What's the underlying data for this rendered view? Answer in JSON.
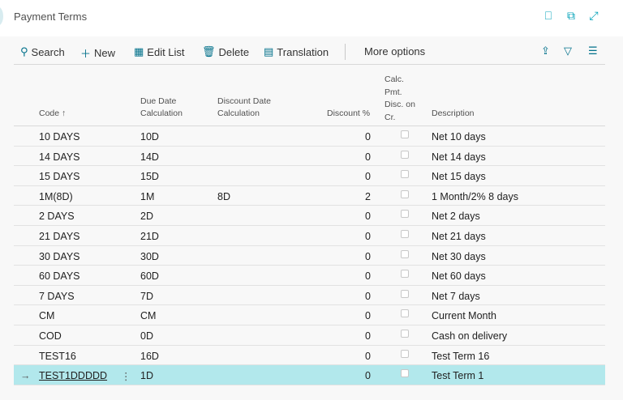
{
  "header": {
    "title": "Payment Terms"
  },
  "toolbar": {
    "search": "Search",
    "new": "New",
    "edit_list": "Edit List",
    "delete": "Delete",
    "translation": "Translation",
    "more": "More options"
  },
  "columns": {
    "code": "Code",
    "sort": "↑",
    "due": [
      "Due Date",
      "Calculation"
    ],
    "disc_date": [
      "Discount Date",
      "Calculation"
    ],
    "disc_pct": "Discount %",
    "calc": [
      "Calc.",
      "Pmt.",
      "Disc. on",
      "Cr."
    ],
    "desc": "Description"
  },
  "rows": [
    {
      "code": "10 DAYS",
      "due": "10D",
      "disc_date": "",
      "disc": "0",
      "calc": false,
      "desc": "Net 10 days"
    },
    {
      "code": "14 DAYS",
      "due": "14D",
      "disc_date": "",
      "disc": "0",
      "calc": false,
      "desc": "Net 14 days"
    },
    {
      "code": "15 DAYS",
      "due": "15D",
      "disc_date": "",
      "disc": "0",
      "calc": false,
      "desc": "Net 15 days"
    },
    {
      "code": "1M(8D)",
      "due": "1M",
      "disc_date": "8D",
      "disc": "2",
      "calc": false,
      "desc": "1 Month/2% 8 days"
    },
    {
      "code": "2 DAYS",
      "due": "2D",
      "disc_date": "",
      "disc": "0",
      "calc": false,
      "desc": "Net 2 days"
    },
    {
      "code": "21 DAYS",
      "due": "21D",
      "disc_date": "",
      "disc": "0",
      "calc": false,
      "desc": "Net 21 days"
    },
    {
      "code": "30 DAYS",
      "due": "30D",
      "disc_date": "",
      "disc": "0",
      "calc": false,
      "desc": "Net 30 days"
    },
    {
      "code": "60 DAYS",
      "due": "60D",
      "disc_date": "",
      "disc": "0",
      "calc": false,
      "desc": "Net 60 days"
    },
    {
      "code": "7 DAYS",
      "due": "7D",
      "disc_date": "",
      "disc": "0",
      "calc": false,
      "desc": "Net 7 days"
    },
    {
      "code": "CM",
      "due": "CM",
      "disc_date": "",
      "disc": "0",
      "calc": false,
      "desc": "Current Month"
    },
    {
      "code": "COD",
      "due": "0D",
      "disc_date": "",
      "disc": "0",
      "calc": false,
      "desc": "Cash on delivery"
    },
    {
      "code": "TEST16",
      "due": "16D",
      "disc_date": "",
      "disc": "0",
      "calc": false,
      "desc": "Test Term 16"
    },
    {
      "code": "TEST1DDDDD",
      "due": "1D",
      "disc_date": "",
      "disc": "0",
      "calc": false,
      "desc": "Test Term 1",
      "selected": true
    }
  ],
  "colors": {
    "accent": "#00708a",
    "selected_row": "#b2e8ec"
  }
}
